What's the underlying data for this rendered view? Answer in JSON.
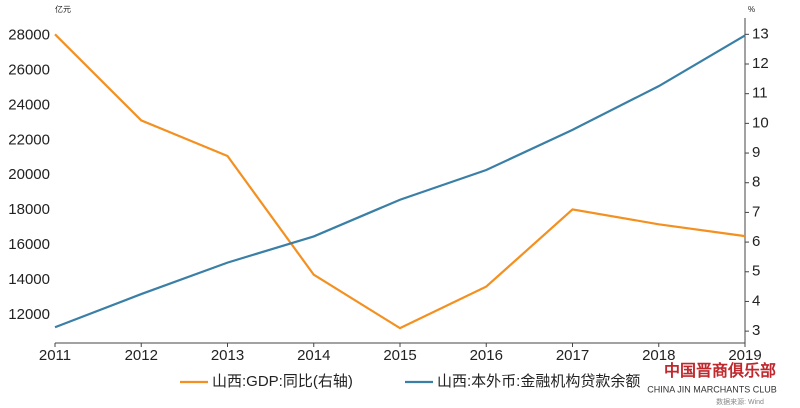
{
  "chart_data": {
    "type": "line",
    "y_unit": "亿元",
    "y2_unit": "%",
    "x": [
      "2011",
      "2012",
      "2013",
      "2014",
      "2015",
      "2016",
      "2017",
      "2018",
      "2019"
    ],
    "series": [
      {
        "name": "山西:GDP:同比(右轴)",
        "color": "#f39020",
        "axis": "y2",
        "values": [
          13,
          10.1,
          8.9,
          4.9,
          3.1,
          4.5,
          7.1,
          6.6,
          6.2
        ]
      },
      {
        "name": "山西:本外币:金融机构贷款余额",
        "color": "#3a7fa6",
        "values": [
          11300,
          13200,
          15000,
          16500,
          18600,
          20300,
          22600,
          25100,
          28000
        ]
      }
    ],
    "ylim": [
      10400,
      29000
    ],
    "yticks": [
      12000,
      14000,
      16000,
      18000,
      20000,
      22000,
      24000,
      26000,
      28000
    ],
    "y2lim": [
      2.6,
      13.55
    ],
    "y2ticks": [
      3,
      4,
      5,
      6,
      7,
      8,
      9,
      10,
      11,
      12,
      13
    ],
    "watermark": {
      "title": "中国晋商俱乐部",
      "subtitle": "CHINA JIN MARCHANTS CLUB",
      "source": "数据来源: Wind"
    }
  }
}
